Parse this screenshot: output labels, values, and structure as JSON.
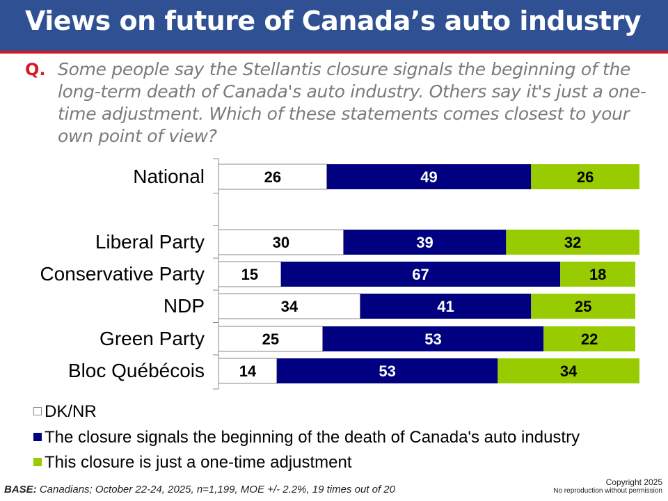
{
  "header": {
    "title": "Views on future of Canada’s auto industry"
  },
  "question": {
    "marker": "Q.",
    "text": "Some people say the Stellantis closure signals the beginning of the long-term death of Canada's auto industry. Others say it's just a one-time adjustment. Which of these statements comes closest to your own point of view?"
  },
  "colors": {
    "header_bg": "#2f5193",
    "header_rule": "#d71920",
    "dk_nr": "#ffffff",
    "death": "#000080",
    "adjustment": "#99cc00"
  },
  "chart_data": {
    "type": "bar",
    "orientation": "horizontal",
    "stacked": true,
    "title": "Views on future of Canada’s auto industry",
    "categories": [
      "National",
      "",
      "Liberal Party",
      "Conservative Party",
      "NDP",
      "Green Party",
      "Bloc Québécois"
    ],
    "series": [
      {
        "name": "DK/NR",
        "color": "#ffffff",
        "label_color": "#000000",
        "values": [
          26,
          null,
          30,
          15,
          34,
          25,
          14
        ]
      },
      {
        "name": "The closure signals the beginning of the death of Canada's auto industry",
        "color": "#000080",
        "label_color": "#ffffff",
        "values": [
          49,
          null,
          39,
          67,
          41,
          53,
          53
        ]
      },
      {
        "name": "This closure is just a one-time adjustment",
        "color": "#99cc00",
        "label_color": "#000000",
        "values": [
          26,
          null,
          32,
          18,
          25,
          22,
          34
        ]
      }
    ],
    "xlim": [
      0,
      100
    ],
    "xlabel": "",
    "ylabel": "",
    "grid": false,
    "legend_position": "bottom-left",
    "data_labels": true
  },
  "legend": {
    "items": [
      {
        "label": "DK/NR",
        "color": "#ffffff"
      },
      {
        "label": "The closure signals the beginning of the death of Canada's auto industry",
        "color": "#000080"
      },
      {
        "label": "This closure is just a one-time adjustment",
        "color": "#99cc00"
      }
    ]
  },
  "footer": {
    "base_label": "BASE:",
    "base_text": " Canadians; October 22-24, 2025, n=1,199, MOE +/- 2.2%, 19 times out of 20",
    "copyright": "Copyright 2025",
    "no_reproduction": "No reproduction without permission"
  }
}
